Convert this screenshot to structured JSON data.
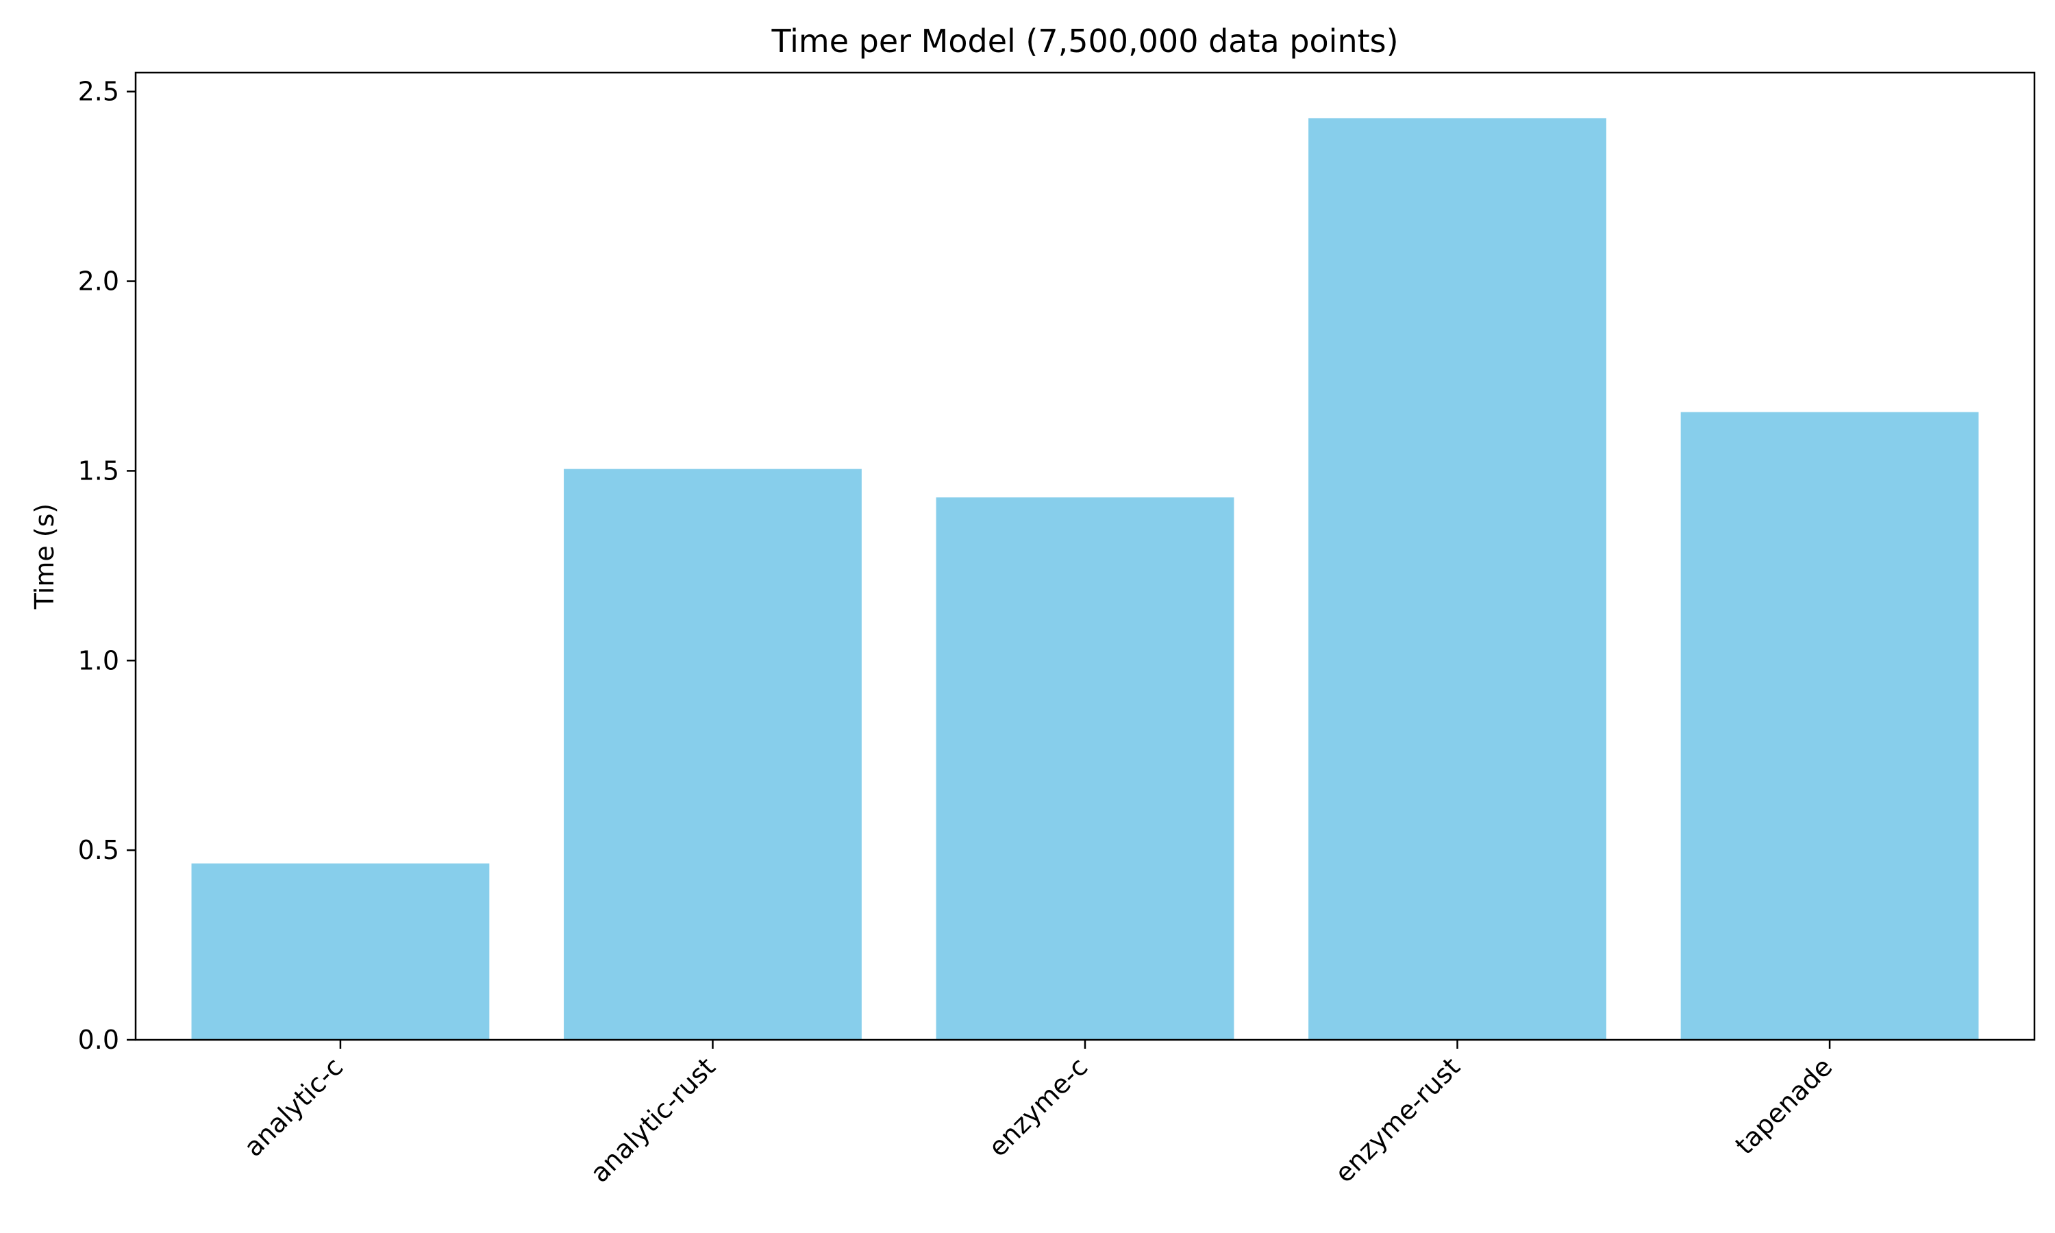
{
  "chart_data": {
    "type": "bar",
    "title": "Time per Model (7,500,000 data points)",
    "xlabel": "",
    "ylabel": "Time (s)",
    "categories": [
      "analytic-c",
      "analytic-rust",
      "enzyme-c",
      "enzyme-rust",
      "tapenade"
    ],
    "values": [
      0.465,
      1.505,
      1.43,
      2.43,
      1.655
    ],
    "ylim": [
      0,
      2.55
    ],
    "yticks": [
      0.0,
      0.5,
      1.0,
      1.5,
      2.0,
      2.5
    ],
    "ytick_labels": [
      "0.0",
      "0.5",
      "1.0",
      "1.5",
      "2.0",
      "2.5"
    ],
    "xtick_rotation": 45,
    "grid": false,
    "legend": "none",
    "bar_color": "#87CEEB",
    "axis_color": "#000000"
  }
}
